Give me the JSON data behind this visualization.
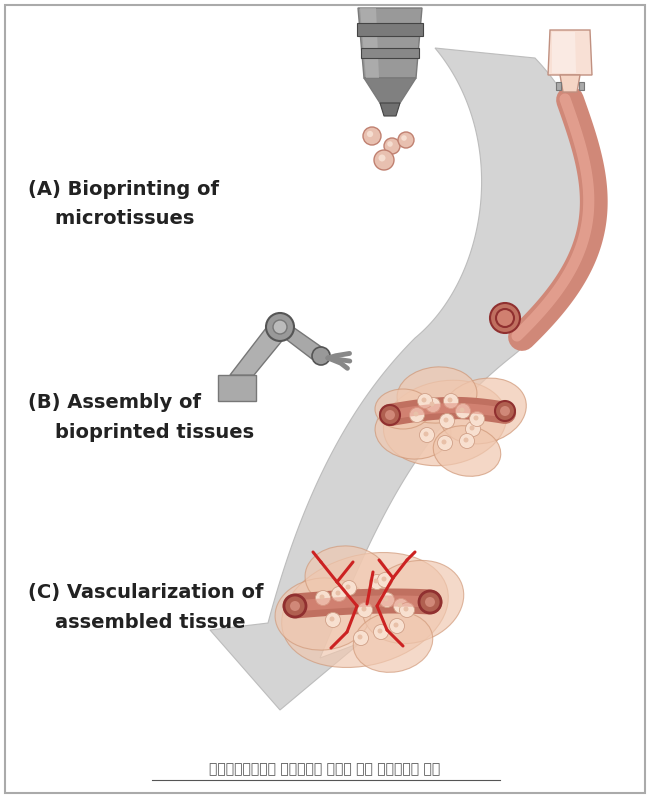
{
  "caption": "바이오프린팅에서 조립까지의 과정을 통한 인공장기의 제작",
  "label_A": "(A) Bioprinting of\n    microtissues",
  "label_B": "(B) Assembly of\n    bioprinted tissues",
  "label_C": "(C) Vascularization of\n    assembled tissue",
  "bg_color": "#ffffff",
  "border_color": "#aaaaaa",
  "text_color": "#222222",
  "caption_color": "#555555",
  "label_fontsize": 14,
  "caption_fontsize": 10,
  "arrow_face": "#d0d0d0",
  "arrow_edge": "#b8b8b8",
  "nozzle_dark": "#7a7a7a",
  "nozzle_mid": "#999999",
  "nozzle_light": "#bbbbbb",
  "tissue_face": "#f0c8b0",
  "tissue_edge": "#d09878",
  "vessel_outer": "#c07060",
  "vessel_inner": "#e09080",
  "vessel_dark": "#903030",
  "red_vessel": "#cc2222",
  "pink_tube": "#d08878",
  "pink_light": "#f0b0a0",
  "syr_face": "#f5d5c5",
  "syr_edge": "#c09080",
  "drop_face": "#e8c0b0",
  "drop_edge": "#c08070"
}
